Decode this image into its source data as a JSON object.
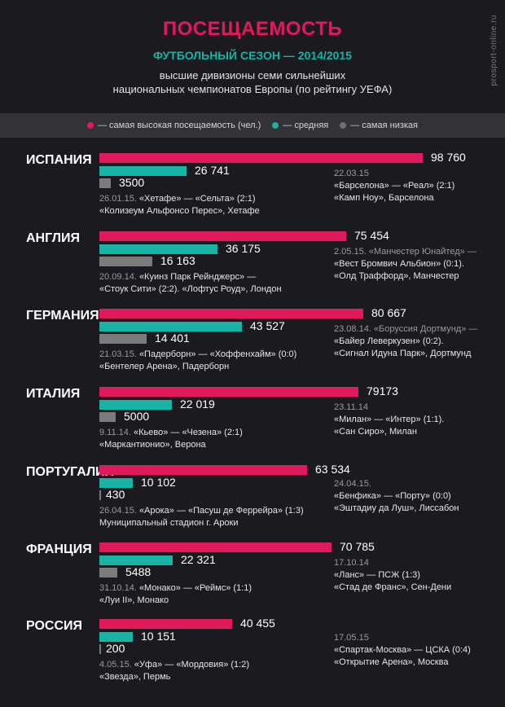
{
  "title": "ПОСЕЩАЕМОСТЬ",
  "subtitle": "ФУТБОЛЬНЫЙ СЕЗОН — 2014/2015",
  "description": [
    "высшие дивизионы семи сильнейших",
    "национальных чемпионатов Европы (по рейтингу УЕФА)"
  ],
  "source": "prosport-online.ru",
  "legend": [
    {
      "label": "— самая высокая посещаемость (чел.)",
      "color": "#e0195a"
    },
    {
      "label": "— средняя",
      "color": "#19b3a3"
    },
    {
      "label": "— самая низкая",
      "color": "#6f6f6f"
    }
  ],
  "colors": {
    "max": "#e0195a",
    "avg": "#19b3a3",
    "min": "#7b7b7b"
  },
  "chart_data": {
    "type": "bar",
    "series": [
      {
        "name": "самая высокая посещаемость (чел.)",
        "values": [
          98760,
          75454,
          80667,
          79173,
          63534,
          70785,
          40455
        ]
      },
      {
        "name": "средняя",
        "values": [
          26741,
          36175,
          43527,
          22019,
          10102,
          22321,
          10151
        ]
      },
      {
        "name": "самая низкая",
        "values": [
          3500,
          16163,
          14401,
          5000,
          430,
          5488,
          200
        ]
      }
    ],
    "categories": [
      "ИСПАНИЯ",
      "АНГЛИЯ",
      "ГЕРМАНИЯ",
      "ИТАЛИЯ",
      "ПОРТУГАЛИЯ",
      "ФРАНЦИЯ",
      "РОССИЯ"
    ],
    "countries": [
      {
        "name": "ИСПАНИЯ",
        "max": 98760,
        "avg": 26741,
        "min": 3500,
        "max_label": "98 760",
        "avg_label": "26 741",
        "min_label": "3500",
        "max_note": {
          "date": "22.03.15",
          "lines": [
            "«Барселона» — «Реал» (2:1)",
            "«Камп Ноу», Барселона"
          ]
        },
        "min_note": {
          "date": "26.01.15.",
          "first": "«Хетафе» — «Сельта» (2:1)",
          "lines": [
            "«Колизеум Альфонсо Перес», Хетафе"
          ]
        }
      },
      {
        "name": "АНГЛИЯ",
        "max": 75454,
        "avg": 36175,
        "min": 16163,
        "max_label": "75 454",
        "avg_label": "36 175",
        "min_label": "16 163",
        "max_note": {
          "date": "2.05.15.",
          "first": "«Манчестер Юнайтед» —",
          "lines": [
            "«Вест Бромвич Альбион» (0:1).",
            "«Олд Траффорд», Манчестер"
          ]
        },
        "min_note": {
          "date": "20.09.14.",
          "first": "«Куинз Парк Рейнджерс» —",
          "lines": [
            "«Стоук Сити» (2:2). «Лофтус Роуд», Лондон"
          ]
        }
      },
      {
        "name": "ГЕРМАНИЯ",
        "max": 80667,
        "avg": 43527,
        "min": 14401,
        "max_label": "80 667",
        "avg_label": "43 527",
        "min_label": "14 401",
        "max_note": {
          "date": "23.08.14.",
          "first": "«Боруссия Дортмунд» —",
          "lines": [
            "«Байер Леверкузен» (0:2).",
            "«Сигнал Идуна Парк», Дортмунд"
          ]
        },
        "min_note": {
          "date": "21.03.15.",
          "first": "«Падерборн» — «Хоффенхайм» (0:0)",
          "lines": [
            "«Бентелер Арена», Падерборн"
          ]
        }
      },
      {
        "name": "ИТАЛИЯ",
        "max": 79173,
        "avg": 22019,
        "min": 5000,
        "max_label": "79173",
        "avg_label": "22 019",
        "min_label": "5000",
        "max_note": {
          "date": "23.11.14",
          "lines": [
            "«Милан» — «Интер» (1:1).",
            "«Сан Сиро», Милан"
          ]
        },
        "min_note": {
          "date": "9.11.14.",
          "first": "«Кьево» — «Чезена» (2:1)",
          "lines": [
            "«Маркантионио», Верона"
          ]
        }
      },
      {
        "name": "ПОРТУГАЛИЯ",
        "max": 63534,
        "avg": 10102,
        "min": 430,
        "max_label": "63 534",
        "avg_label": "10 102",
        "min_label": "430",
        "max_note": {
          "date": "24.04.15.",
          "lines": [
            "«Бенфика» — «Порту» (0:0)",
            "«Эштадиу да Луш», Лиссабон"
          ]
        },
        "min_note": {
          "date": "26.04.15.",
          "first": "«Арока» — «Пасуш де Феррейра» (1:3)",
          "lines": [
            "Муниципальный стадион г. Ароки"
          ]
        }
      },
      {
        "name": "ФРАНЦИЯ",
        "max": 70785,
        "avg": 22321,
        "min": 5488,
        "max_label": "70 785",
        "avg_label": "22 321",
        "min_label": "5488",
        "max_note": {
          "date": "17.10.14",
          "lines": [
            "«Ланс» — ПСЖ (1:3)",
            "«Стад де Франс», Сен-Дени"
          ]
        },
        "min_note": {
          "date": "31.10.14.",
          "first": "«Монако» — «Реймс» (1:1)",
          "lines": [
            "«Луи II», Монако"
          ]
        }
      },
      {
        "name": "РОССИЯ",
        "max": 40455,
        "avg": 10151,
        "min": 200,
        "max_label": "40 455",
        "avg_label": "10 151",
        "min_label": "200",
        "max_note": {
          "date": "17.05.15",
          "lines": [
            "«Спартак-Москва» — ЦСКА (0:4)",
            "«Открытие Арена», Москва"
          ]
        },
        "min_note": {
          "date": "4.05.15.",
          "first": "«Уфа» — «Мордовия» (1:2)",
          "lines": [
            "«Звезда», Пермь"
          ]
        }
      }
    ]
  }
}
